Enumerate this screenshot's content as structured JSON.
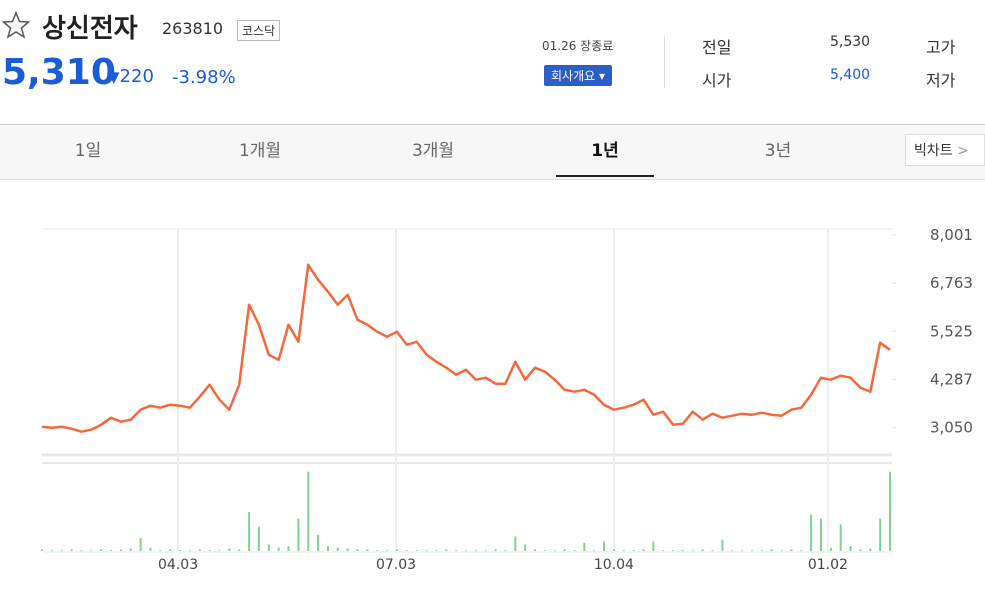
{
  "header": {
    "name": "상신전자",
    "code": "263810",
    "market": "코스닥",
    "price": "5,310",
    "change": "220",
    "change_pct": "-3.98%",
    "status": "01.26 장종료",
    "company_button": "회사개요"
  },
  "summary": {
    "rows": [
      [
        "전일",
        "5,530",
        "고가"
      ],
      [
        "시가",
        "5,400",
        "저가"
      ]
    ]
  },
  "tabs": [
    "1일",
    "1개월",
    "3개월",
    "1년",
    "3년"
  ],
  "big_chart": "빅차트",
  "chart_data": {
    "type": "line",
    "color": "#f4683c",
    "volume_color": "#7ed494",
    "values": [
      3076,
      3050,
      3076,
      3025,
      2948,
      2999,
      3127,
      3307,
      3204,
      3256,
      3512,
      3615,
      3563,
      3640,
      3615,
      3563,
      3846,
      4153,
      3769,
      3512,
      4153,
      6206,
      5692,
      4923,
      4795,
      5692,
      5256,
      7232,
      6847,
      6539,
      6206,
      6462,
      5821,
      5692,
      5513,
      5385,
      5513,
      5179,
      5256,
      4923,
      4743,
      4590,
      4410,
      4538,
      4282,
      4333,
      4179,
      4179,
      4743,
      4282,
      4590,
      4487,
      4282,
      4025,
      3974,
      4025,
      3897,
      3640,
      3512,
      3563,
      3640,
      3769,
      3384,
      3461,
      3127,
      3153,
      3461,
      3256,
      3410,
      3307,
      3358,
      3410,
      3384,
      3435,
      3384,
      3358,
      3512,
      3563,
      3897,
      4333,
      4282,
      4384,
      4333,
      4076,
      3974,
      5231,
      5051
    ],
    "volume": [
      2,
      1,
      1,
      2,
      1,
      1,
      2,
      1,
      2,
      3,
      16,
      4,
      1,
      2,
      1,
      1,
      2,
      1,
      1,
      3,
      2,
      48,
      30,
      8,
      4,
      6,
      40,
      98,
      20,
      6,
      4,
      3,
      2,
      2,
      1,
      1,
      2,
      1,
      1,
      1,
      1,
      2,
      1,
      1,
      1,
      1,
      2,
      1,
      18,
      8,
      2,
      1,
      1,
      2,
      1,
      10,
      1,
      12,
      2,
      1,
      1,
      2,
      12,
      1,
      1,
      1,
      1,
      2,
      1,
      14,
      1,
      1,
      1,
      1,
      2,
      1,
      2,
      1,
      45,
      40,
      4,
      33,
      6,
      2,
      3,
      40,
      98
    ],
    "ylim": [
      2350,
      8150
    ],
    "vlim": [
      0,
      100
    ],
    "yticks": [
      {
        "value": 8001,
        "label": "8,001"
      },
      {
        "value": 6763,
        "label": "6,763"
      },
      {
        "value": 5525,
        "label": "5,525"
      },
      {
        "value": 4287,
        "label": "4,287"
      },
      {
        "value": 3050,
        "label": "3,050"
      }
    ],
    "xticks": [
      {
        "value": 13.8,
        "label": "04.03"
      },
      {
        "value": 35.9,
        "label": "07.03"
      },
      {
        "value": 58,
        "label": "10.04"
      },
      {
        "value": 79.7,
        "label": "01.02"
      }
    ]
  }
}
